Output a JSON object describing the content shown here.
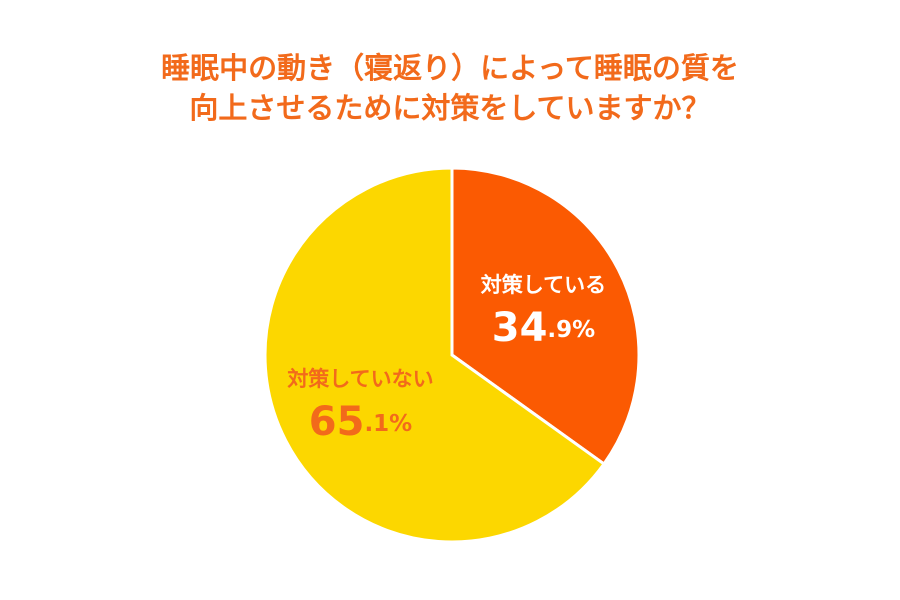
{
  "chart_data": {
    "type": "pie",
    "title": [
      "睡眠中の動き（寝返り）によって睡眠の質を",
      "向上させるために対策をしていますか？"
    ],
    "title_color": "#f26a1b",
    "categories": [
      "対策している",
      "対策していない"
    ],
    "values": [
      34.9,
      65.1
    ],
    "value_labels": [
      "34.9%",
      "65.1%"
    ],
    "colors": [
      "#fb5a02",
      "#fcd700"
    ],
    "label_colors": [
      "#ffffff",
      "#f26a1b"
    ]
  }
}
